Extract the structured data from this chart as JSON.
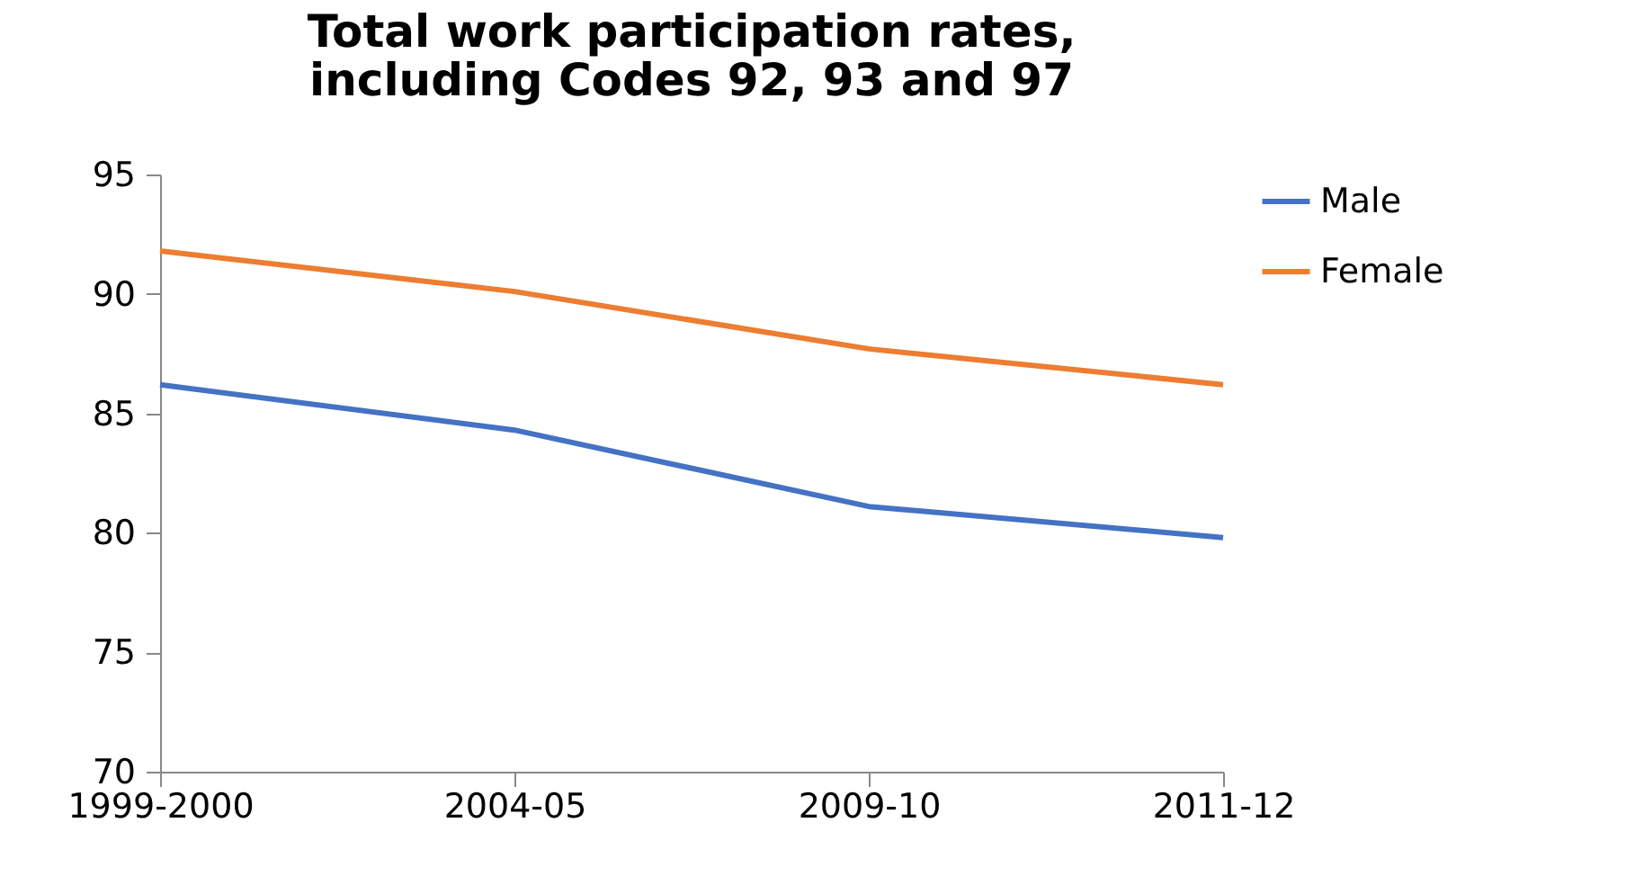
{
  "chart_data": {
    "type": "line",
    "title": "Total work participation rates,\nincluding Codes 92, 93 and 97",
    "categories": [
      "1999-2000",
      "2004-05",
      "2009-10",
      "2011-12"
    ],
    "series": [
      {
        "name": "Male",
        "color": "#4472c4",
        "values": [
          86.2,
          84.3,
          81.1,
          79.8
        ]
      },
      {
        "name": "Female",
        "color": "#ed7d31",
        "values": [
          91.8,
          90.1,
          87.7,
          86.2
        ]
      }
    ],
    "ylim": [
      70,
      95
    ],
    "yticks": [
      70,
      75,
      80,
      85,
      90,
      95
    ],
    "grid": false,
    "legend": "right",
    "marker": "none",
    "line_style": "solid"
  }
}
